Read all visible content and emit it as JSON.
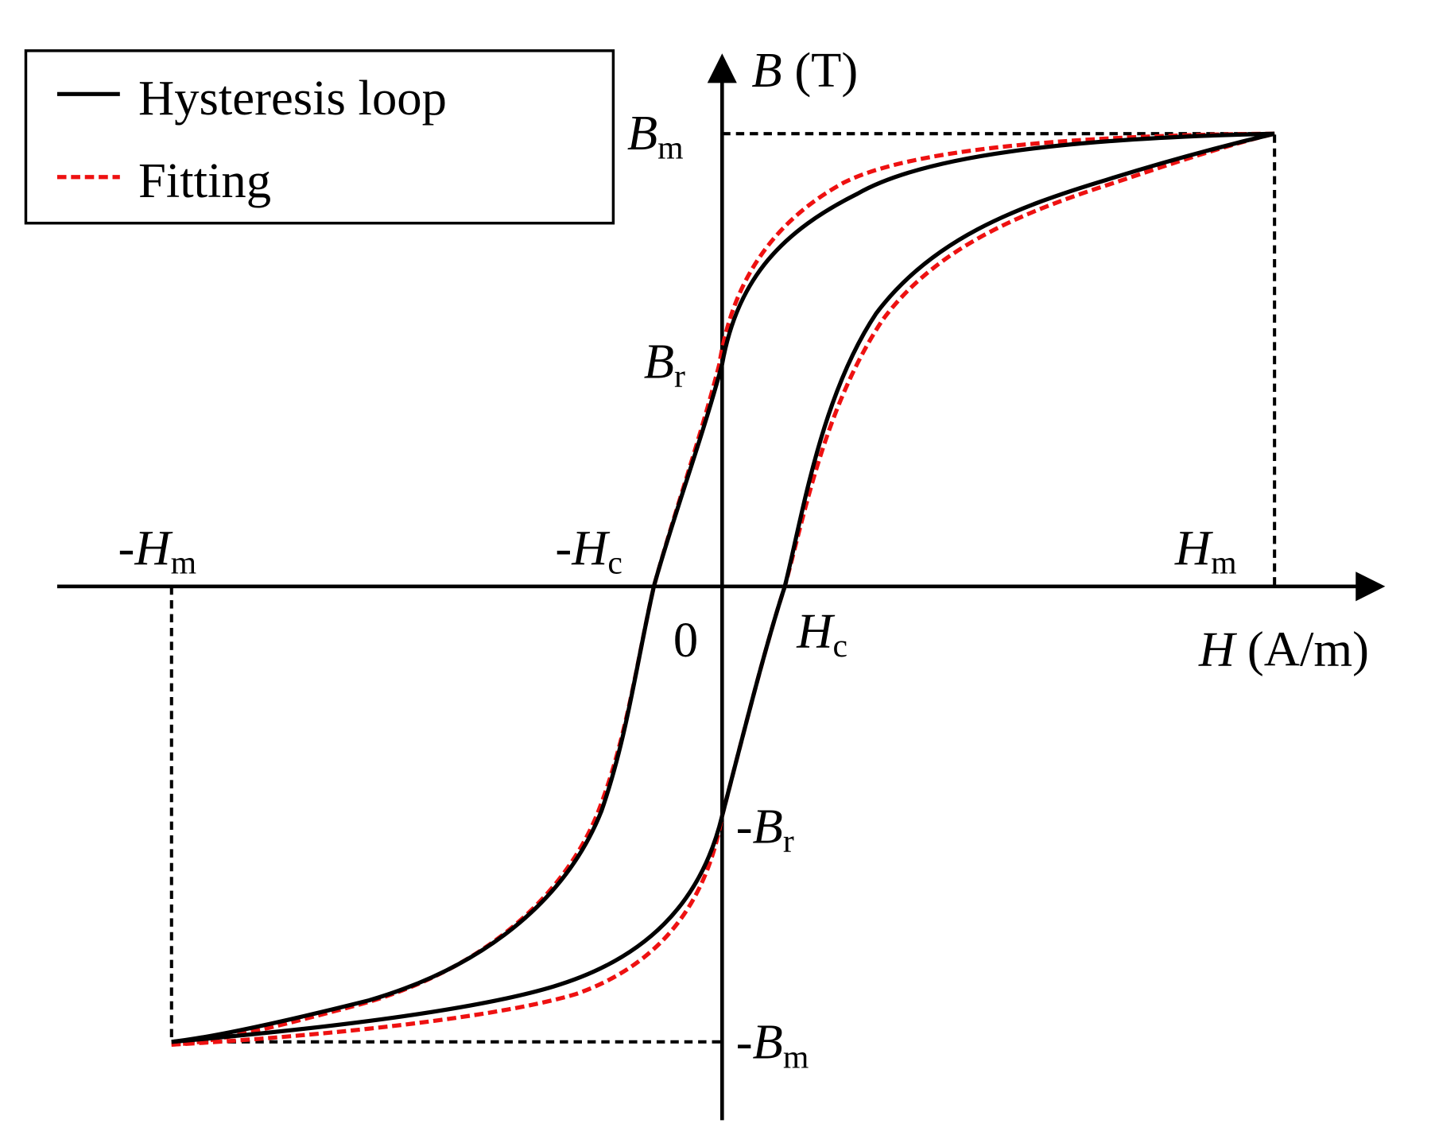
{
  "legend": {
    "items": [
      {
        "label": "Hysteresis loop"
      },
      {
        "label": "Fitting"
      }
    ]
  },
  "axes": {
    "y": {
      "symbol": "B",
      "unit": "(T)"
    },
    "x": {
      "symbol": "H",
      "unit": "(A/m)"
    }
  },
  "origin": "0",
  "labels": {
    "b_max": {
      "symbol": "B",
      "subscript": "m"
    },
    "b_rem": {
      "symbol": "B",
      "subscript": "r"
    },
    "neg_b_rem": {
      "sign": "-",
      "symbol": "B",
      "subscript": "r"
    },
    "neg_b_max": {
      "sign": "-",
      "symbol": "B",
      "subscript": "m"
    },
    "neg_h_max": {
      "sign": "-",
      "symbol": "H",
      "subscript": "m"
    },
    "neg_h_coer": {
      "sign": "-",
      "symbol": "H",
      "subscript": "c"
    },
    "h_max": {
      "symbol": "H",
      "subscript": "m"
    },
    "h_coer": {
      "symbol": "H",
      "subscript": "c"
    }
  }
}
